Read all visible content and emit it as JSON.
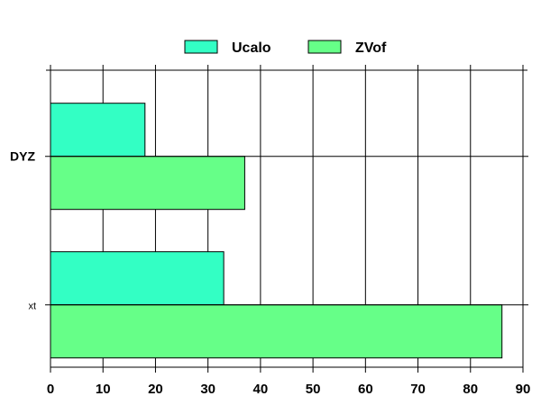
{
  "chart_data": {
    "type": "bar",
    "orientation": "horizontal",
    "categories": [
      "DYZ",
      "xt"
    ],
    "series": [
      {
        "name": "Ucalo",
        "values": [
          18,
          33
        ],
        "color": "#33ffc4"
      },
      {
        "name": "ZVof",
        "values": [
          37,
          86
        ],
        "color": "#66ff88"
      }
    ],
    "xlim": [
      0,
      90
    ],
    "xticks": [
      "0",
      "10",
      "20",
      "30",
      "40",
      "50",
      "60",
      "70",
      "80",
      "90"
    ],
    "grid": true,
    "legend_position": "top-center",
    "title": "",
    "xlabel": "",
    "ylabel": ""
  }
}
